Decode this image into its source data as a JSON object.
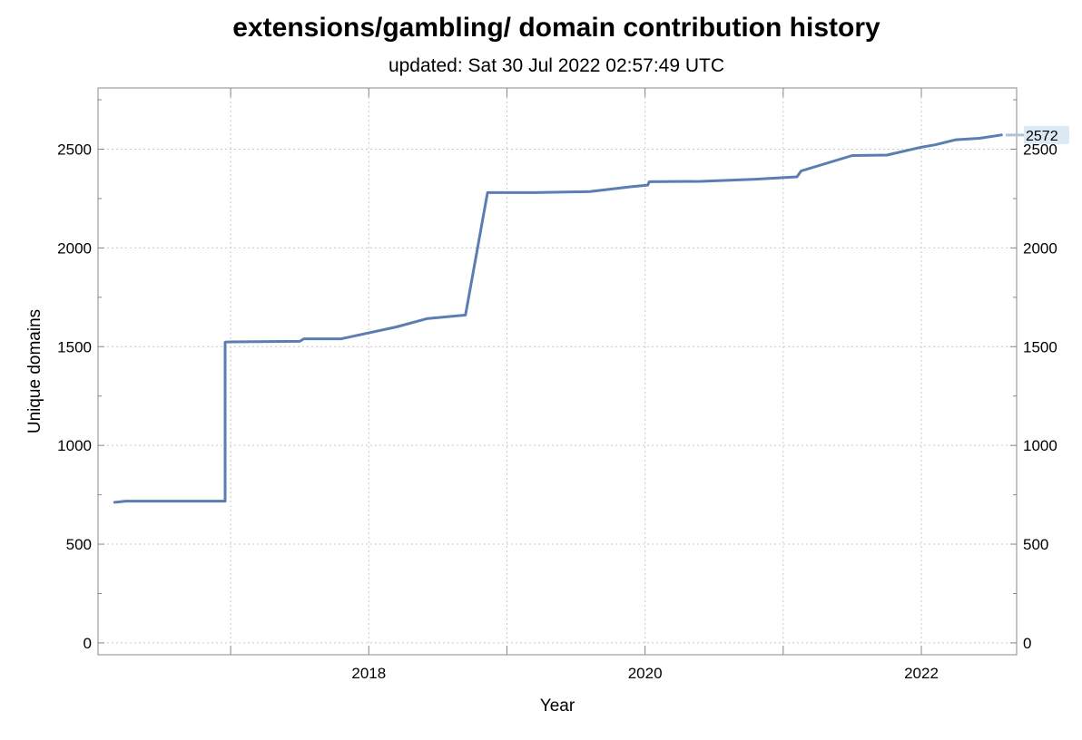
{
  "chart_data": {
    "type": "line",
    "title": "extensions/gambling/ domain contribution history",
    "subtitle": "updated: Sat 30 Jul 2022 02:57:49 UTC",
    "xlabel": "Year",
    "ylabel": "Unique domains",
    "x_ticks": [
      {
        "value": 2018,
        "label": "2018"
      },
      {
        "value": 2020,
        "label": "2020"
      },
      {
        "value": 2022,
        "label": "2022"
      }
    ],
    "x_minor_ticks": [
      2017,
      2019,
      2021
    ],
    "y_ticks": [
      {
        "value": 0,
        "label": "0"
      },
      {
        "value": 500,
        "label": "500"
      },
      {
        "value": 1000,
        "label": "1000"
      },
      {
        "value": 1500,
        "label": "1500"
      },
      {
        "value": 2000,
        "label": "2000"
      },
      {
        "value": 2500,
        "label": "2500"
      }
    ],
    "xlim": [
      2016.04,
      2022.69
    ],
    "ylim": [
      -60,
      2810
    ],
    "grid": true,
    "end_label": "2572",
    "line_color": "#5b7db1",
    "end_label_bg": "#dce9f5",
    "series": [
      {
        "x": [
          2016.16,
          2016.24,
          2016.5,
          2016.96,
          2016.96,
          2016.97,
          2017.2,
          2017.5,
          2017.53,
          2017.8,
          2018.2,
          2018.42,
          2018.7,
          2018.86,
          2019.2,
          2019.6,
          2019.9,
          2020.02,
          2020.03,
          2020.4,
          2020.8,
          2021.1,
          2021.13,
          2021.5,
          2021.75,
          2022.0,
          2022.1,
          2022.25,
          2022.42,
          2022.58
        ],
        "y": [
          712,
          718,
          718,
          718,
          1522,
          1524,
          1525,
          1527,
          1540,
          1540,
          1600,
          1642,
          1660,
          2280,
          2280,
          2285,
          2310,
          2318,
          2335,
          2337,
          2348,
          2360,
          2390,
          2468,
          2470,
          2510,
          2522,
          2548,
          2555,
          2572
        ]
      }
    ]
  }
}
